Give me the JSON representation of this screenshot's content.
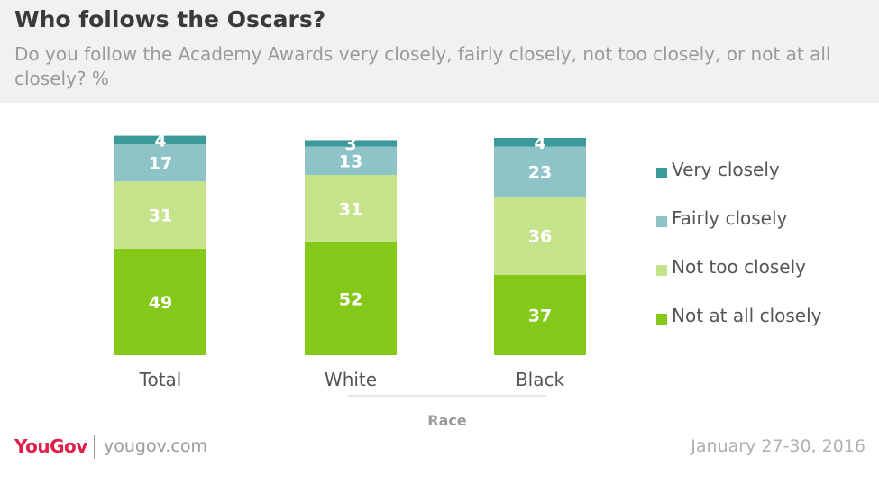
{
  "header": {
    "title": "Who follows the Oscars?",
    "subtitle": "Do you follow the Academy Awards very closely, fairly closely, not too closely, or not at all closely? %"
  },
  "chart_data": {
    "type": "bar",
    "stacked": true,
    "categories": [
      "Total",
      "White",
      "Black"
    ],
    "group_label": "Race",
    "ylim": [
      0,
      100
    ],
    "grid": false,
    "legend_position": "right",
    "series": [
      {
        "name": "Not at all closely",
        "values": [
          49,
          52,
          37
        ],
        "color": "#84c819"
      },
      {
        "name": "Not too closely",
        "values": [
          31,
          31,
          36
        ],
        "color": "#c5e38a"
      },
      {
        "name": "Fairly closely",
        "values": [
          17,
          13,
          23
        ],
        "color": "#8ec3c7"
      },
      {
        "name": "Very closely",
        "values": [
          4,
          3,
          4
        ],
        "color": "#3c9a9a"
      }
    ]
  },
  "legend": {
    "items": [
      {
        "label": "Very closely",
        "color": "#3c9a9a"
      },
      {
        "label": "Fairly closely",
        "color": "#8ec3c7"
      },
      {
        "label": "Not too closely",
        "color": "#c5e38a"
      },
      {
        "label": "Not at all closely",
        "color": "#84c819"
      }
    ]
  },
  "footer": {
    "logo": "YouGov",
    "site": "yougov.com",
    "date": "January 27-30, 2016"
  }
}
